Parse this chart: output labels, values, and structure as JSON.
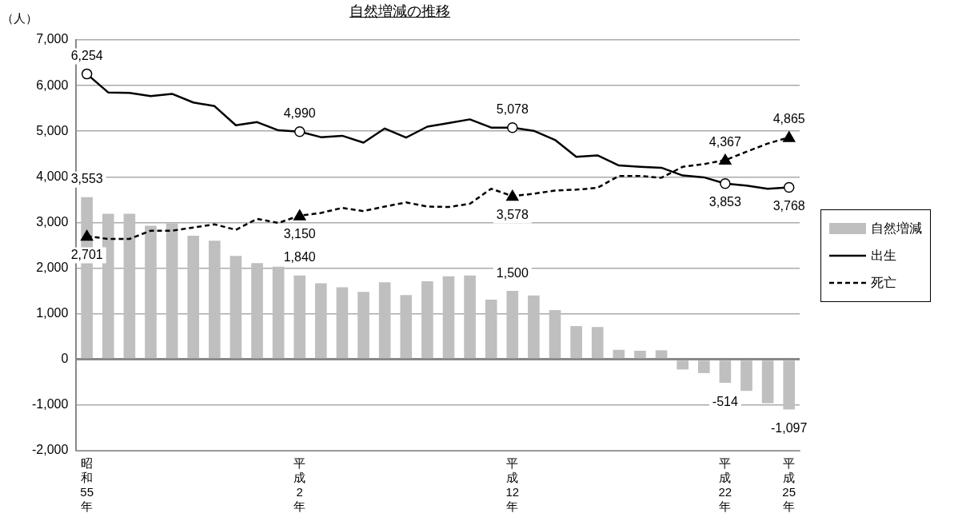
{
  "chart_data": {
    "type": "bar",
    "title": "自然増減の推移",
    "ylabel": "（人）",
    "categories": [
      "昭和55年",
      null,
      null,
      null,
      null,
      null,
      null,
      null,
      null,
      null,
      "平成2年",
      null,
      null,
      null,
      null,
      null,
      null,
      null,
      null,
      null,
      "平成12年",
      null,
      null,
      null,
      null,
      null,
      null,
      null,
      null,
      null,
      "平成22年",
      null,
      null,
      "平成25年"
    ],
    "series": [
      {
        "name": "自然増減",
        "color": "#bfbfbf",
        "values": [
          3553,
          3190,
          3190,
          2930,
          2980,
          2710,
          2600,
          2270,
          2110,
          2030,
          1840,
          1670,
          1580,
          1480,
          1690,
          1410,
          1710,
          1820,
          1840,
          1310,
          1500,
          1400,
          1080,
          730,
          710,
          210,
          190,
          200,
          -220,
          -300,
          -514,
          -690,
          -960,
          -1097
        ],
        "value_labels": [
          "3,553",
          null,
          null,
          null,
          null,
          null,
          null,
          null,
          null,
          null,
          "1,840",
          null,
          null,
          null,
          null,
          null,
          null,
          null,
          null,
          null,
          "1,500",
          null,
          null,
          null,
          null,
          null,
          null,
          null,
          null,
          null,
          "-514",
          null,
          null,
          "-1,097"
        ]
      },
      {
        "name": "出生",
        "type": "line",
        "color": "#000000",
        "line_style": "solid",
        "values": [
          6254,
          5850,
          5840,
          5770,
          5820,
          5630,
          5550,
          5130,
          5200,
          5020,
          4990,
          4870,
          4900,
          4750,
          5060,
          4860,
          5100,
          5180,
          5260,
          5080,
          5078,
          5010,
          4810,
          4440,
          4470,
          4250,
          4220,
          4200,
          4030,
          3990,
          3853,
          3810,
          3740,
          3768
        ],
        "value_labels": [
          "6,254",
          null,
          null,
          null,
          null,
          null,
          null,
          null,
          null,
          null,
          "4,990",
          null,
          null,
          null,
          null,
          null,
          null,
          null,
          null,
          null,
          "5,078",
          null,
          null,
          null,
          null,
          null,
          null,
          null,
          null,
          null,
          "3,853",
          null,
          null,
          "3,768"
        ]
      },
      {
        "name": "死亡",
        "type": "line",
        "color": "#000000",
        "line_style": "dashed",
        "values": [
          2701,
          2640,
          2640,
          2820,
          2820,
          2890,
          2960,
          2840,
          3080,
          2990,
          3150,
          3210,
          3320,
          3250,
          3350,
          3440,
          3350,
          3340,
          3410,
          3740,
          3578,
          3630,
          3700,
          3720,
          3760,
          4020,
          4020,
          3980,
          4220,
          4280,
          4367,
          4550,
          4730,
          4865
        ],
        "value_labels": [
          "2,701",
          null,
          null,
          null,
          null,
          null,
          null,
          null,
          null,
          null,
          "3,150",
          null,
          null,
          null,
          null,
          null,
          null,
          null,
          null,
          null,
          "3,578",
          null,
          null,
          null,
          null,
          null,
          null,
          null,
          null,
          null,
          "4,367",
          null,
          null,
          "4,865"
        ]
      }
    ],
    "ylim": [
      -2000,
      7000
    ],
    "yticks": [
      {
        "value": -2000,
        "label": "-2,000"
      },
      {
        "value": -1000,
        "label": "-1,000"
      },
      0,
      {
        "value": 1000,
        "label": "1,000"
      },
      {
        "value": 2000,
        "label": "2,000"
      },
      {
        "value": 3000,
        "label": "3,000"
      },
      {
        "value": 4000,
        "label": "4,000"
      },
      {
        "value": 5000,
        "label": "5,000"
      },
      {
        "value": 6000,
        "label": "6,000"
      },
      {
        "value": 7000,
        "label": "7,000"
      }
    ],
    "grid": "y",
    "legend": "right"
  }
}
